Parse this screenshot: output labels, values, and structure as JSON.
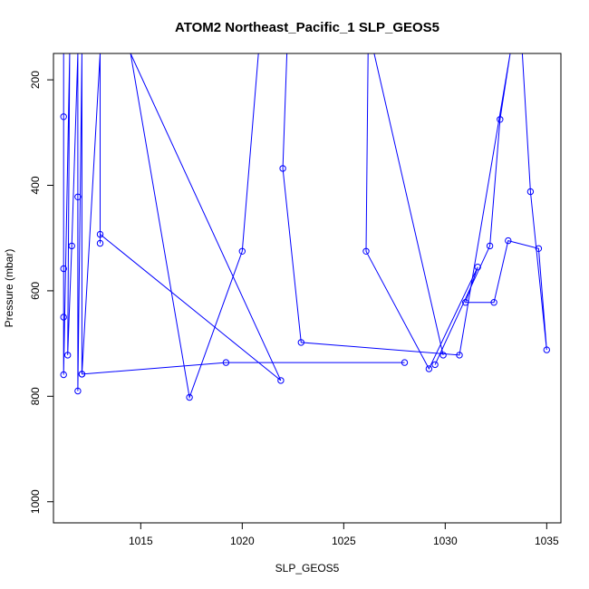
{
  "chart_data": {
    "type": "line",
    "title": "ATOM2 Northeast_Pacific_1 SLP_GEOS5",
    "xlabel": "SLP_GEOS5",
    "ylabel": "Pressure (mbar)",
    "xlim": [
      1010.7,
      1035.7
    ],
    "ylim": [
      1040,
      150
    ],
    "y_reversed": true,
    "grid": false,
    "xticks": [
      1015,
      1020,
      1025,
      1030,
      1035
    ],
    "yticks": [
      200,
      400,
      600,
      800,
      1000
    ],
    "colors": {
      "series": "#0000ff",
      "frame": "#000000"
    },
    "series": [
      {
        "points": [
          [
            1011.2,
            150
          ],
          [
            1011.2,
            270
          ],
          [
            1011.2,
            558
          ],
          [
            1011.2,
            650
          ],
          [
            1011.2,
            759
          ],
          [
            1011.5,
            150
          ],
          [
            1011.4,
            722
          ],
          [
            1011.6,
            515
          ],
          [
            1011.9,
            150
          ],
          [
            1011.9,
            422
          ],
          [
            1011.9,
            790
          ],
          [
            1012.1,
            150
          ],
          [
            1012.1,
            758
          ],
          [
            1013.0,
            150
          ],
          [
            1013.0,
            510
          ],
          [
            1013.0,
            493
          ],
          [
            1021.9,
            770
          ],
          [
            1014.5,
            150
          ],
          [
            1017.4,
            802
          ],
          [
            1020.0,
            525
          ],
          [
            1020.8,
            150
          ],
          [
            1022.2,
            150
          ],
          [
            1022.0,
            368
          ],
          [
            1022.9,
            698
          ],
          [
            1030.7,
            722
          ],
          [
            1033.2,
            150
          ],
          [
            1032.7,
            275
          ],
          [
            1032.2,
            515
          ],
          [
            1029.5,
            740
          ]
        ]
      },
      {
        "points": [
          [
            1012.1,
            758
          ],
          [
            1019.2,
            736
          ],
          [
            1028.0,
            736
          ]
        ]
      },
      {
        "points": [
          [
            1025.5,
            150
          ],
          [
            1026.2,
            150
          ],
          [
            1026.1,
            525
          ],
          [
            1029.2,
            748
          ],
          [
            1031.6,
            555
          ],
          [
            1031.0,
            622
          ],
          [
            1032.4,
            622
          ],
          [
            1033.1,
            505
          ],
          [
            1034.6,
            520
          ],
          [
            1035.0,
            712
          ],
          [
            1034.2,
            412
          ],
          [
            1033.8,
            150
          ],
          [
            1026.5,
            150
          ],
          [
            1029.9,
            722
          ]
        ]
      }
    ]
  }
}
